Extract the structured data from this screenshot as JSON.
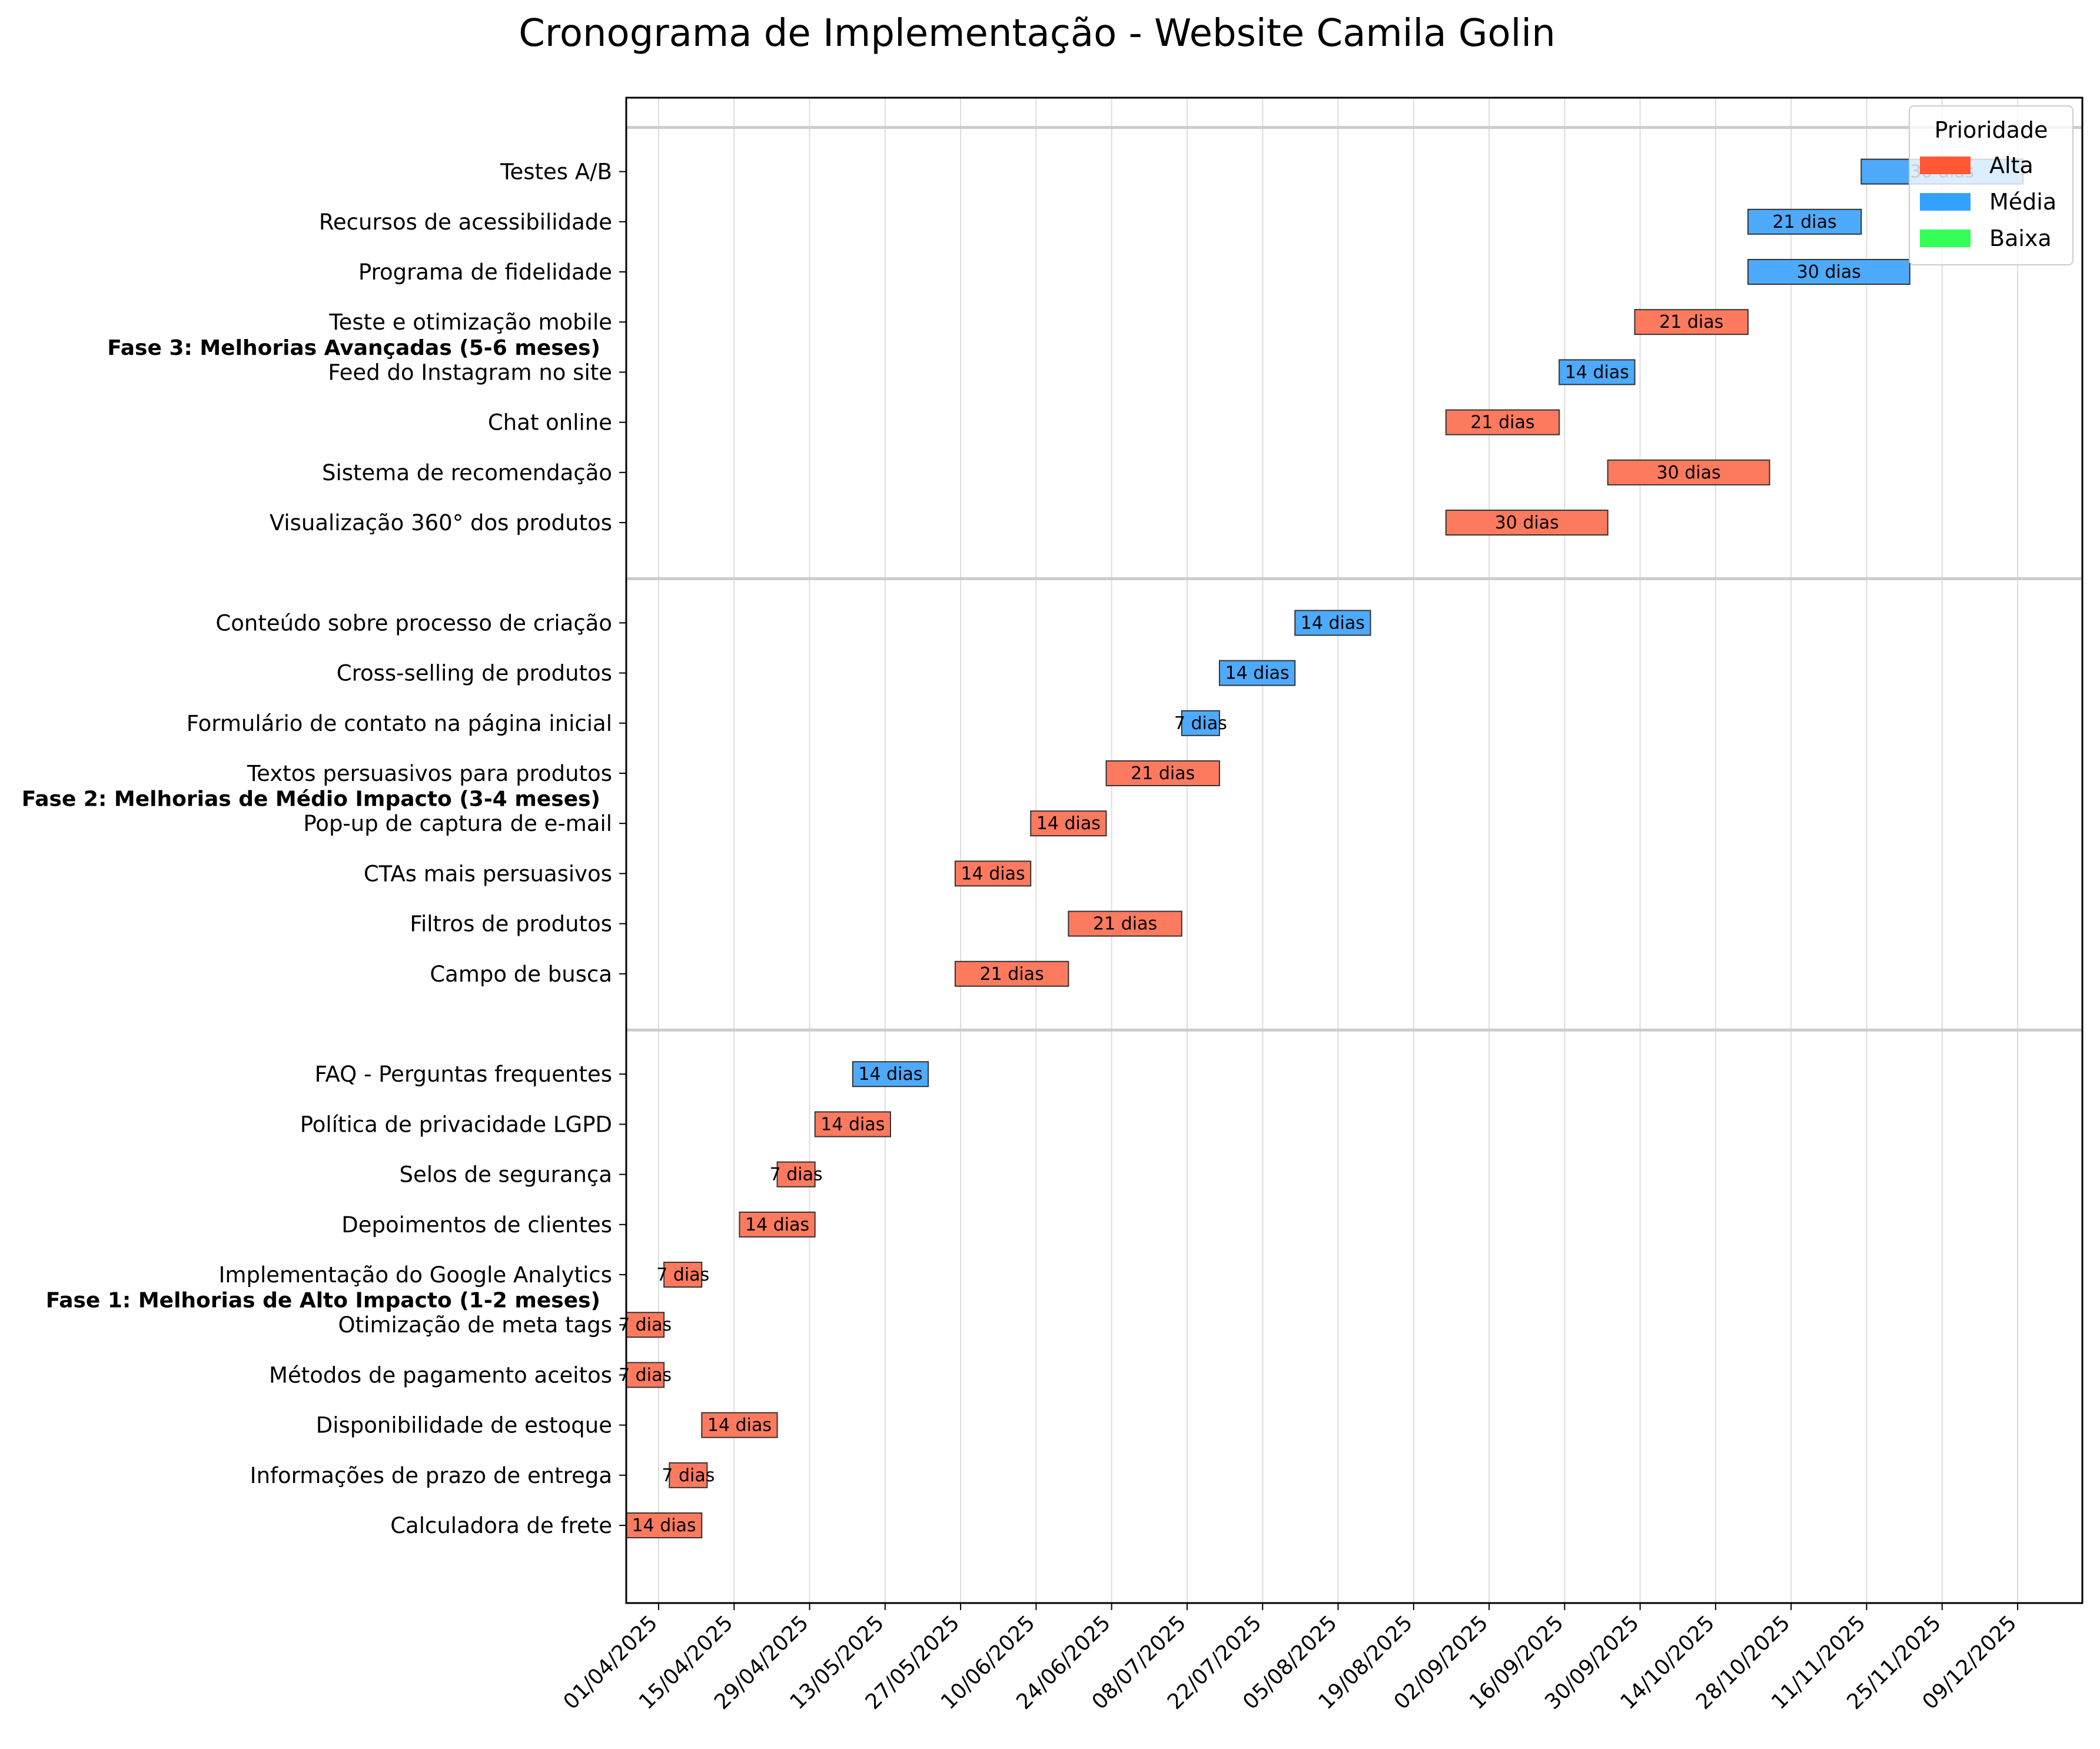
{
  "chart_data": {
    "type": "gantt",
    "title": "Cronograma de Implementação - Website Camila Golin",
    "x_ticks": [
      "01/04/2025",
      "15/04/2025",
      "29/04/2025",
      "13/05/2025",
      "27/05/2025",
      "10/06/2025",
      "24/06/2025",
      "08/07/2025",
      "22/07/2025",
      "05/08/2025",
      "19/08/2025",
      "02/09/2025",
      "16/09/2025",
      "30/09/2025",
      "14/10/2025",
      "28/10/2025",
      "11/11/2025",
      "25/11/2025",
      "09/12/2025"
    ],
    "x_range": [
      "26/03/2025",
      "21/12/2025"
    ],
    "grid": true,
    "legend": {
      "title": "Prioridade",
      "placement": "top-right",
      "items": [
        {
          "label": "Alta",
          "color": "#ff5733"
        },
        {
          "label": "Média",
          "color": "#33a1ff"
        },
        {
          "label": "Baixa",
          "color": "#33ff57"
        }
      ]
    },
    "priority_colors": {
      "Alta": "#fd7a5f",
      "Média": "#4daafc",
      "Baixa": "#57ff77"
    },
    "phases": [
      {
        "name": "Fase 1: Melhorias de Alto Impacto (1-2 meses)",
        "tasks": [
          {
            "name": "Calculadora de frete",
            "start": "2025-03-26",
            "duration": 14,
            "label": "14 dias",
            "priority": "Alta"
          },
          {
            "name": "Informações de prazo de entrega",
            "start": "2025-04-03",
            "duration": 7,
            "label": "7 dias",
            "priority": "Alta"
          },
          {
            "name": "Disponibilidade de estoque",
            "start": "2025-04-09",
            "duration": 14,
            "label": "14 dias",
            "priority": "Alta"
          },
          {
            "name": "Métodos de pagamento aceitos",
            "start": "2025-03-26",
            "duration": 7,
            "label": "7 dias",
            "priority": "Alta"
          },
          {
            "name": "Otimização de meta tags",
            "start": "2025-03-26",
            "duration": 7,
            "label": "7 dias",
            "priority": "Alta"
          },
          {
            "name": "Implementação do Google Analytics",
            "start": "2025-04-02",
            "duration": 7,
            "label": "7 dias",
            "priority": "Alta"
          },
          {
            "name": "Depoimentos de clientes",
            "start": "2025-04-16",
            "duration": 14,
            "label": "14 dias",
            "priority": "Alta"
          },
          {
            "name": "Selos de segurança",
            "start": "2025-04-23",
            "duration": 7,
            "label": "7 dias",
            "priority": "Alta"
          },
          {
            "name": "Política de privacidade LGPD",
            "start": "2025-04-30",
            "duration": 14,
            "label": "14 dias",
            "priority": "Alta"
          },
          {
            "name": "FAQ - Perguntas frequentes",
            "start": "2025-05-07",
            "duration": 14,
            "label": "14 dias",
            "priority": "Média"
          }
        ]
      },
      {
        "name": "Fase 2: Melhorias de Médio Impacto (3-4 meses)",
        "tasks": [
          {
            "name": "Campo de busca",
            "start": "2025-05-26",
            "duration": 21,
            "label": "21 dias",
            "priority": "Alta"
          },
          {
            "name": "Filtros de produtos",
            "start": "2025-06-16",
            "duration": 21,
            "label": "21 dias",
            "priority": "Alta"
          },
          {
            "name": "CTAs mais persuasivos",
            "start": "2025-05-26",
            "duration": 14,
            "label": "14 dias",
            "priority": "Alta"
          },
          {
            "name": "Pop-up de captura de e-mail",
            "start": "2025-06-09",
            "duration": 14,
            "label": "14 dias",
            "priority": "Alta"
          },
          {
            "name": "Textos persuasivos para produtos",
            "start": "2025-06-23",
            "duration": 21,
            "label": "21 dias",
            "priority": "Alta"
          },
          {
            "name": "Formulário de contato na página inicial",
            "start": "2025-07-07",
            "duration": 7,
            "label": "7 dias",
            "priority": "Média"
          },
          {
            "name": "Cross-selling de produtos",
            "start": "2025-07-14",
            "duration": 14,
            "label": "14 dias",
            "priority": "Média"
          },
          {
            "name": "Conteúdo sobre processo de criação",
            "start": "2025-07-28",
            "duration": 14,
            "label": "14 dias",
            "priority": "Média"
          }
        ]
      },
      {
        "name": "Fase 3: Melhorias Avançadas (5-6 meses)",
        "tasks": [
          {
            "name": "Visualização 360° dos produtos",
            "start": "2025-08-25",
            "duration": 30,
            "label": "30 dias",
            "priority": "Alta"
          },
          {
            "name": "Sistema de recomendação",
            "start": "2025-09-24",
            "duration": 30,
            "label": "30 dias",
            "priority": "Alta"
          },
          {
            "name": "Chat online",
            "start": "2025-08-25",
            "duration": 21,
            "label": "21 dias",
            "priority": "Alta"
          },
          {
            "name": "Feed do Instagram no site",
            "start": "2025-09-15",
            "duration": 14,
            "label": "14 dias",
            "priority": "Média"
          },
          {
            "name": "Teste e otimização mobile",
            "start": "2025-09-29",
            "duration": 21,
            "label": "21 dias",
            "priority": "Alta"
          },
          {
            "name": "Programa de fidelidade",
            "start": "2025-10-20",
            "duration": 30,
            "label": "30 dias",
            "priority": "Média"
          },
          {
            "name": "Recursos de acessibilidade",
            "start": "2025-10-20",
            "duration": 21,
            "label": "21 dias",
            "priority": "Média"
          },
          {
            "name": "Testes A/B",
            "start": "2025-11-10",
            "duration": 30,
            "label": "30 dias",
            "priority": "Média"
          }
        ]
      }
    ]
  }
}
